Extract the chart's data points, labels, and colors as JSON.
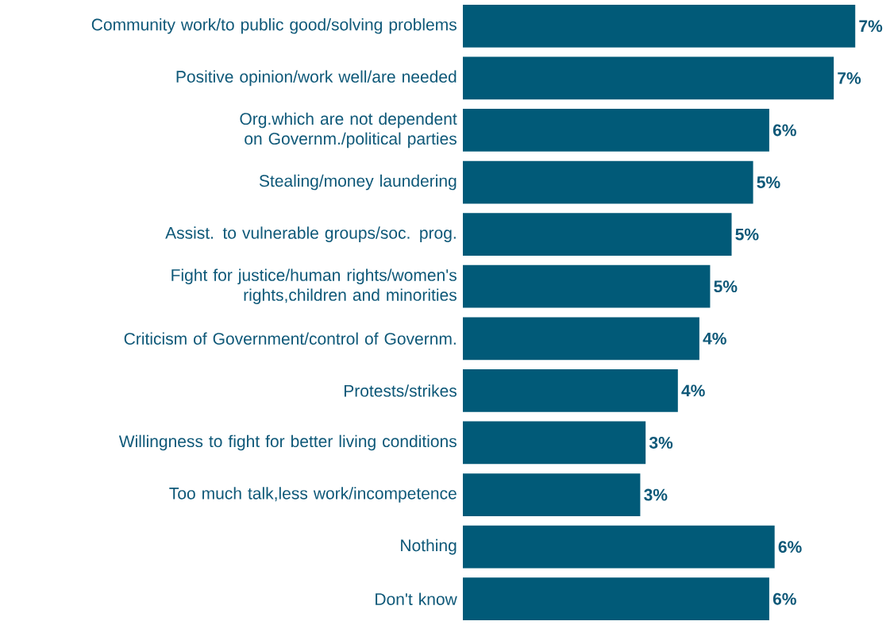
{
  "chart_data": {
    "type": "bar",
    "orientation": "horizontal",
    "categories": [
      "Community work/to public good/solving problems",
      "Positive opinion/work well/are needed",
      "Org.which are not dependent on Governm./political parties",
      "Stealing/money laundering",
      "Assist. to vulnerable groups/soc. prog.",
      "Fight for justice/human rights/women's rights,children and minorities",
      "Criticism of Government/control of Governm.",
      "Protests/strikes",
      "Willingness to fight for better living conditions",
      "Too much talk,less work/incompetence",
      "Nothing",
      "Don't know"
    ],
    "values": [
      7.3,
      6.9,
      5.7,
      5.4,
      5.0,
      4.6,
      4.4,
      4.0,
      3.4,
      3.3,
      5.8,
      5.7
    ],
    "value_labels": [
      "7%",
      "7%",
      "6%",
      "5%",
      "5%",
      "5%",
      "4%",
      "4%",
      "3%",
      "3%",
      "6%",
      "6%"
    ],
    "color": "#015a78"
  }
}
